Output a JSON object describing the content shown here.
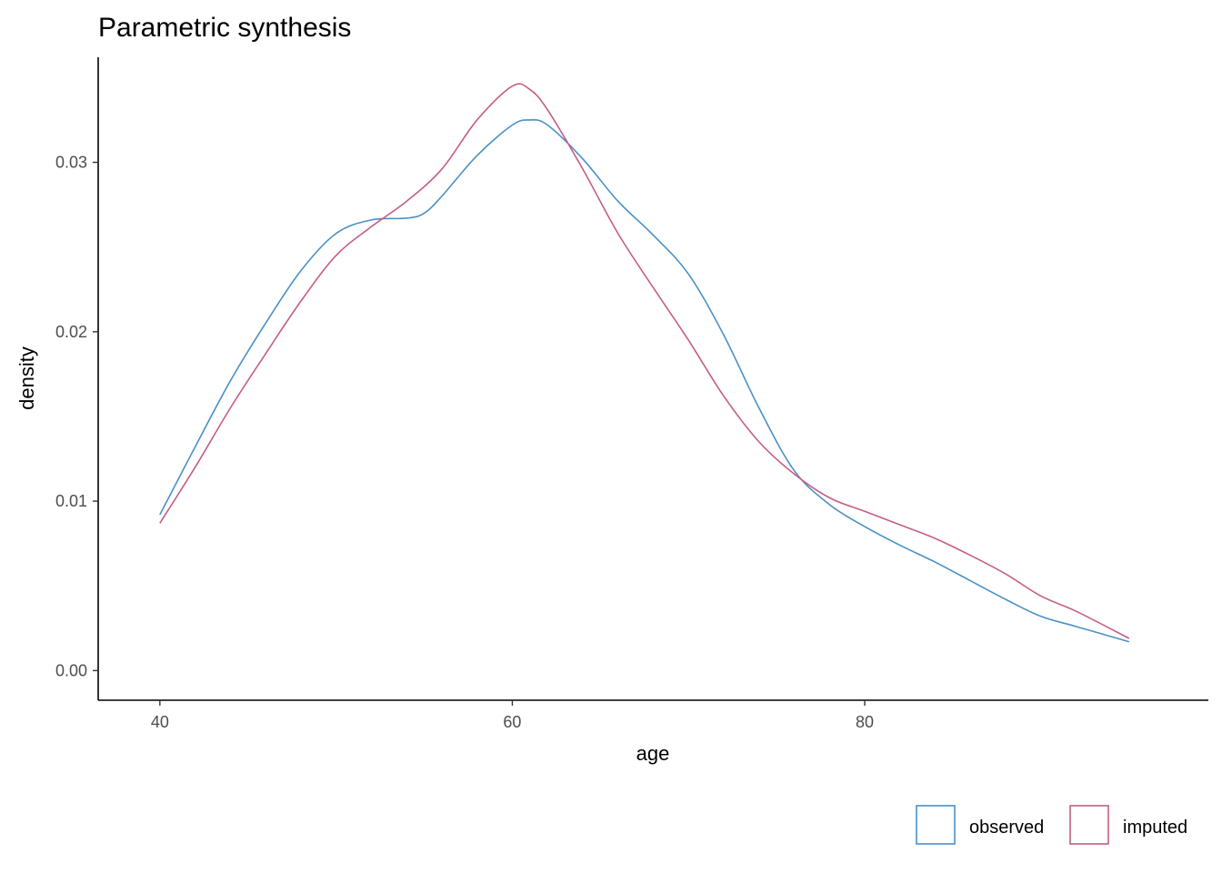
{
  "chart_data": {
    "type": "line",
    "title": "Parametric synthesis",
    "xlabel": "age",
    "ylabel": "density",
    "xlim": [
      36.5,
      99.5
    ],
    "ylim": [
      -0.00175,
      0.0362
    ],
    "x_ticks": [
      40,
      60,
      80
    ],
    "x_tick_labels": [
      "40",
      "60",
      "80"
    ],
    "y_ticks": [
      0.0,
      0.01,
      0.02,
      0.03
    ],
    "y_tick_labels": [
      "0.00",
      "0.01",
      "0.02",
      "0.03"
    ],
    "grid": false,
    "legend_position": "bottom-right",
    "series": [
      {
        "name": "observed",
        "color": "#4a90c8",
        "x": [
          40,
          42,
          44,
          46,
          48,
          50,
          52,
          54,
          55,
          56,
          58,
          60,
          61,
          62,
          64,
          66,
          68,
          70,
          72,
          74,
          76,
          78,
          80,
          82,
          84,
          86,
          88,
          90,
          92,
          95
        ],
        "y": [
          0.0092,
          0.0132,
          0.0171,
          0.0205,
          0.0236,
          0.0258,
          0.0266,
          0.0267,
          0.027,
          0.028,
          0.0304,
          0.0322,
          0.0325,
          0.0322,
          0.0302,
          0.0277,
          0.0257,
          0.0234,
          0.0198,
          0.0155,
          0.0118,
          0.0098,
          0.0085,
          0.0074,
          0.0064,
          0.0053,
          0.0042,
          0.0032,
          0.0026,
          0.0017
        ]
      },
      {
        "name": "imputed",
        "color": "#c45e86",
        "x": [
          40,
          42,
          44,
          46,
          48,
          50,
          52,
          54,
          56,
          58,
          60,
          61,
          62,
          64,
          66,
          68,
          70,
          72,
          74,
          76,
          78,
          80,
          82,
          84,
          86,
          88,
          90,
          92,
          95
        ],
        "y": [
          0.0087,
          0.012,
          0.0155,
          0.0187,
          0.0218,
          0.0245,
          0.0262,
          0.0277,
          0.0296,
          0.0325,
          0.0345,
          0.0343,
          0.0331,
          0.0296,
          0.0258,
          0.0226,
          0.0195,
          0.0162,
          0.0135,
          0.0116,
          0.0102,
          0.0094,
          0.0086,
          0.0078,
          0.0068,
          0.0057,
          0.0044,
          0.0035,
          0.0019
        ]
      }
    ]
  }
}
